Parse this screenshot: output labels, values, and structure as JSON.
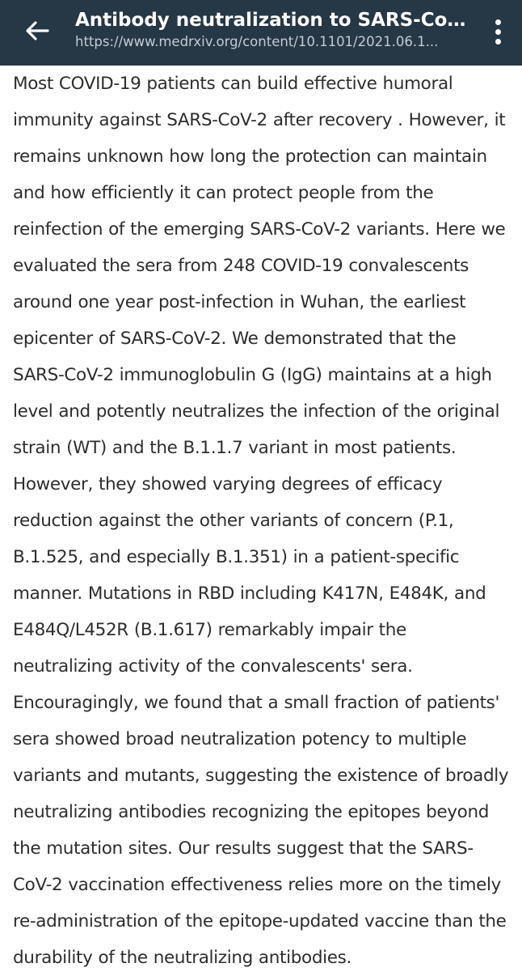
{
  "header": {
    "title": "Antibody neutralization to SARS-CoV-2 ...",
    "url": "https://www.medrxiv.org/content/10.1101/2021.06.1...",
    "back_icon": "arrow-left-icon",
    "menu_icon": "more-vertical-icon"
  },
  "colors": {
    "appbar": "#263746",
    "text": "#2d2d2d",
    "background": "#ffffff"
  },
  "article": {
    "abstract": "Most COVID-19 patients can build effective humoral immunity against SARS-CoV-2 after recovery . However, it remains unknown how long the protection can maintain and how efficiently it can protect people from the reinfection of the emerging SARS-CoV-2 variants. Here we evaluated the sera from 248 COVID-19 convalescents around one year post-infection in Wuhan, the earliest epicenter of SARS-CoV-2. We demonstrated that the SARS-CoV-2 immunoglobulin G (IgG) maintains at a high level and potently neutralizes the infection of the original strain (WT) and the B.1.1.7 variant in most patients. However, they showed varying degrees of efficacy reduction against the other variants of concern (P.1, B.1.525, and especially B.1.351) in a patient-specific manner. Mutations in RBD including K417N, E484K, and E484Q/L452R (B.1.617) remarkably impair the neutralizing activity of the convalescents' sera. Encouragingly, we found that a small fraction of patients' sera showed broad neutralization potency to multiple variants and mutants, suggesting the existence of broadly neutralizing antibodies recognizing the epitopes beyond the mutation sites. Our results suggest that the SARS-CoV-2 vaccination effectiveness relies more on the timely re-administration of the epitope-updated vaccine than the durability of the neutralizing antibodies."
  }
}
